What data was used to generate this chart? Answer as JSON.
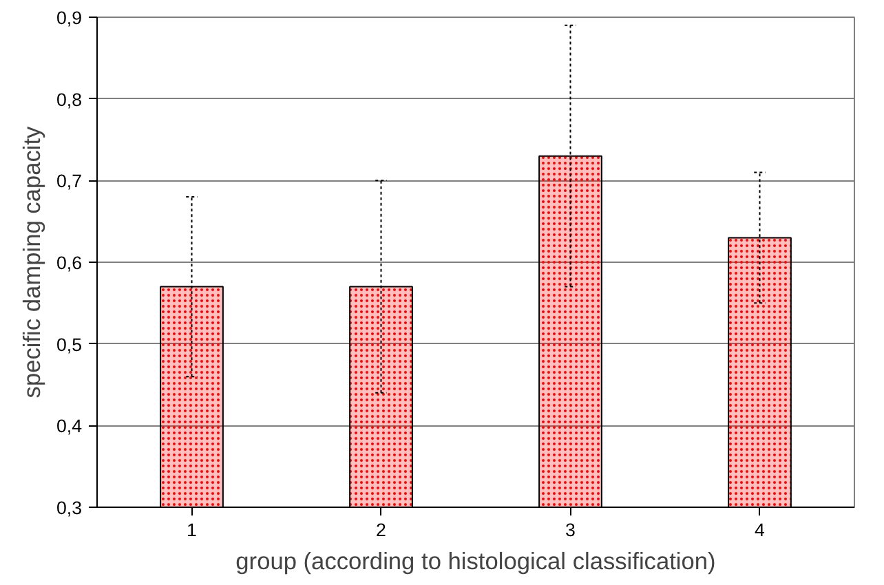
{
  "chart_data": {
    "type": "bar",
    "xlabel": "group (according to histological classification)",
    "ylabel": "specific damping capacity",
    "categories": [
      "1",
      "2",
      "3",
      "4"
    ],
    "values": [
      0.57,
      0.57,
      0.73,
      0.63
    ],
    "errors": [
      0.11,
      0.13,
      0.16,
      0.08
    ],
    "color": "#ff0000",
    "ylim": [
      0.3,
      0.9
    ],
    "yticks": [
      {
        "value": 0.3,
        "label": "0,3"
      },
      {
        "value": 0.4,
        "label": "0,4"
      },
      {
        "value": 0.5,
        "label": "0,5"
      },
      {
        "value": 0.6,
        "label": "0,6"
      },
      {
        "value": 0.7,
        "label": "0,7"
      },
      {
        "value": 0.8,
        "label": "0,8"
      },
      {
        "value": 0.9,
        "label": "0,9"
      }
    ],
    "grid": "y"
  }
}
